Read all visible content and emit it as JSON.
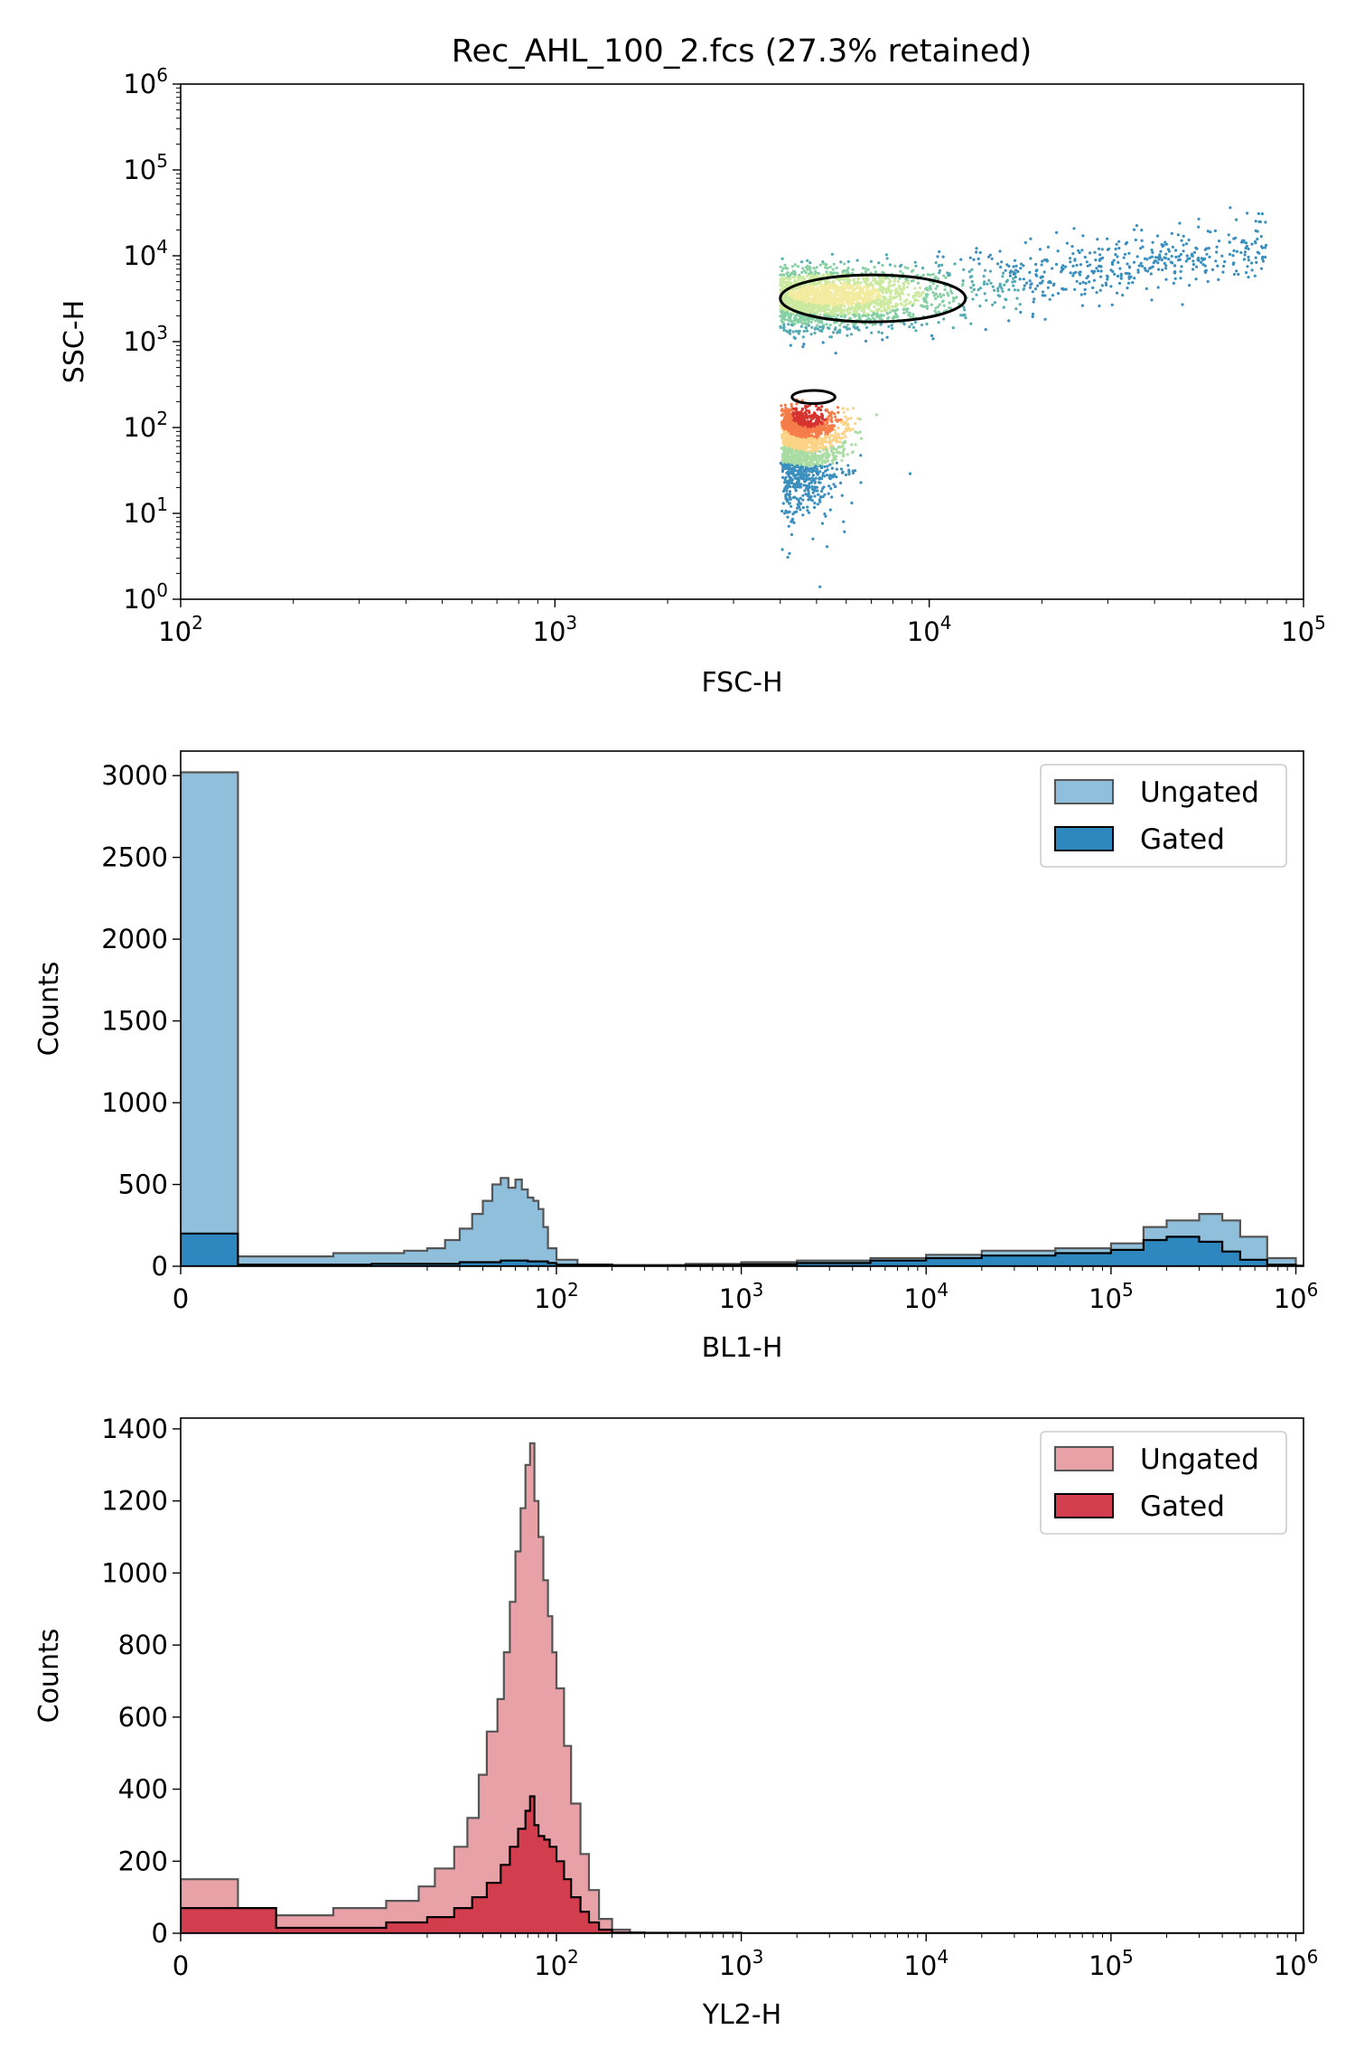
{
  "figure": {
    "title": "Rec_AHL_100_2.fcs (27.3% retained)"
  },
  "chart_data": [
    {
      "type": "scatter",
      "name": "density-scatter",
      "title": "Rec_AHL_100_2.fcs (27.3% retained)",
      "xlabel": "FSC-H",
      "ylabel": "SSC-H",
      "xscale": "log",
      "yscale": "log",
      "xlim": [
        100,
        100000
      ],
      "ylim": [
        1,
        1000000
      ],
      "xticks": [
        {
          "base": "10",
          "exp": "2"
        },
        {
          "base": "10",
          "exp": "3"
        },
        {
          "base": "10",
          "exp": "4"
        },
        {
          "base": "10",
          "exp": "5"
        }
      ],
      "yticks": [
        {
          "base": "10",
          "exp": "0"
        },
        {
          "base": "10",
          "exp": "1"
        },
        {
          "base": "10",
          "exp": "2"
        },
        {
          "base": "10",
          "exp": "3"
        },
        {
          "base": "10",
          "exp": "4"
        },
        {
          "base": "10",
          "exp": "5"
        },
        {
          "base": "10",
          "exp": "6"
        }
      ],
      "colormap": "Spectral_r density",
      "clusters": [
        {
          "label": "upper population",
          "fsc_range": [
            4000,
            90000
          ],
          "ssc_center": 3500,
          "ssc_range": [
            600,
            50000
          ]
        },
        {
          "label": "lower population",
          "fsc_range": [
            4000,
            10000
          ],
          "ssc_center": 150,
          "ssc_range": [
            1,
            350
          ]
        }
      ],
      "gate_contours": [
        {
          "label": "gate contour 1",
          "fsc_range": [
            4000,
            12500
          ],
          "ssc_range": [
            1700,
            6000
          ]
        },
        {
          "label": "gate contour 2",
          "fsc_range": [
            4300,
            5600
          ],
          "ssc_range": [
            190,
            270
          ]
        }
      ]
    },
    {
      "type": "histogram",
      "name": "bl1-histogram",
      "xlabel": "BL1-H",
      "ylabel": "Counts",
      "xscale": "symlog",
      "xlim": [
        0,
        1100000
      ],
      "ylim": [
        0,
        3150
      ],
      "xticks": [
        {
          "base": "0",
          "exp": ""
        },
        {
          "base": "10",
          "exp": "2"
        },
        {
          "base": "10",
          "exp": "3"
        },
        {
          "base": "10",
          "exp": "4"
        },
        {
          "base": "10",
          "exp": "5"
        },
        {
          "base": "10",
          "exp": "6"
        }
      ],
      "yticks": [
        0,
        500,
        1000,
        1500,
        2000,
        2500,
        3000
      ],
      "legend": {
        "position": "top-right",
        "entries": [
          "Ungated",
          "Gated"
        ]
      },
      "colors": {
        "ungated": "#8fbfdb",
        "gated": "#2f87c0",
        "ungated_edge": "#555555",
        "gated_edge": "#000000"
      },
      "series": [
        {
          "name": "Ungated",
          "points": [
            [
              0,
              3020
            ],
            [
              3,
              60
            ],
            [
              8,
              80
            ],
            [
              15,
              95
            ],
            [
              20,
              110
            ],
            [
              25,
              160
            ],
            [
              30,
              230
            ],
            [
              35,
              320
            ],
            [
              40,
              400
            ],
            [
              45,
              500
            ],
            [
              50,
              540
            ],
            [
              55,
              480
            ],
            [
              60,
              530
            ],
            [
              65,
              470
            ],
            [
              70,
              420
            ],
            [
              75,
              400
            ],
            [
              80,
              350
            ],
            [
              85,
              240
            ],
            [
              90,
              110
            ],
            [
              100,
              40
            ],
            [
              130,
              10
            ],
            [
              200,
              8
            ],
            [
              500,
              15
            ],
            [
              1000,
              25
            ],
            [
              2000,
              35
            ],
            [
              5000,
              50
            ],
            [
              10000,
              70
            ],
            [
              20000,
              95
            ],
            [
              50000,
              110
            ],
            [
              100000,
              140
            ],
            [
              150000,
              240
            ],
            [
              200000,
              280
            ],
            [
              300000,
              320
            ],
            [
              400000,
              280
            ],
            [
              500000,
              180
            ],
            [
              700000,
              50
            ],
            [
              1000000,
              5
            ]
          ]
        },
        {
          "name": "Gated",
          "points": [
            [
              0,
              200
            ],
            [
              3,
              10
            ],
            [
              10,
              15
            ],
            [
              30,
              25
            ],
            [
              50,
              35
            ],
            [
              70,
              30
            ],
            [
              90,
              20
            ],
            [
              100,
              10
            ],
            [
              200,
              4
            ],
            [
              500,
              6
            ],
            [
              1000,
              12
            ],
            [
              2000,
              20
            ],
            [
              5000,
              35
            ],
            [
              10000,
              50
            ],
            [
              20000,
              65
            ],
            [
              50000,
              80
            ],
            [
              100000,
              100
            ],
            [
              150000,
              160
            ],
            [
              200000,
              180
            ],
            [
              300000,
              150
            ],
            [
              400000,
              90
            ],
            [
              500000,
              40
            ],
            [
              700000,
              10
            ],
            [
              1000000,
              0
            ]
          ]
        }
      ]
    },
    {
      "type": "histogram",
      "name": "yl2-histogram",
      "xlabel": "YL2-H",
      "ylabel": "Counts",
      "xscale": "symlog",
      "xlim": [
        0,
        1100000
      ],
      "ylim": [
        0,
        1430
      ],
      "xticks": [
        {
          "base": "0",
          "exp": ""
        },
        {
          "base": "10",
          "exp": "2"
        },
        {
          "base": "10",
          "exp": "3"
        },
        {
          "base": "10",
          "exp": "4"
        },
        {
          "base": "10",
          "exp": "5"
        },
        {
          "base": "10",
          "exp": "6"
        }
      ],
      "yticks": [
        0,
        200,
        400,
        600,
        800,
        1000,
        1200,
        1400
      ],
      "legend": {
        "position": "top-right",
        "entries": [
          "Ungated",
          "Gated"
        ]
      },
      "colors": {
        "ungated": "#e8a1a6",
        "gated": "#d33e4e",
        "ungated_edge": "#555555",
        "gated_edge": "#000000"
      },
      "series": [
        {
          "name": "Ungated",
          "points": [
            [
              0,
              150
            ],
            [
              3,
              50
            ],
            [
              8,
              70
            ],
            [
              12,
              90
            ],
            [
              18,
              130
            ],
            [
              22,
              180
            ],
            [
              28,
              240
            ],
            [
              33,
              320
            ],
            [
              38,
              440
            ],
            [
              42,
              560
            ],
            [
              48,
              650
            ],
            [
              52,
              780
            ],
            [
              56,
              920
            ],
            [
              60,
              1060
            ],
            [
              64,
              1180
            ],
            [
              68,
              1300
            ],
            [
              72,
              1360
            ],
            [
              76,
              1200
            ],
            [
              80,
              1100
            ],
            [
              85,
              980
            ],
            [
              90,
              880
            ],
            [
              95,
              780
            ],
            [
              100,
              680
            ],
            [
              110,
              520
            ],
            [
              120,
              360
            ],
            [
              135,
              220
            ],
            [
              150,
              120
            ],
            [
              170,
              40
            ],
            [
              200,
              10
            ],
            [
              250,
              2
            ],
            [
              1000,
              0
            ],
            [
              1000000,
              0
            ]
          ]
        },
        {
          "name": "Gated",
          "points": [
            [
              0,
              70
            ],
            [
              5,
              15
            ],
            [
              12,
              30
            ],
            [
              20,
              45
            ],
            [
              28,
              70
            ],
            [
              35,
              100
            ],
            [
              42,
              140
            ],
            [
              50,
              190
            ],
            [
              56,
              240
            ],
            [
              62,
              290
            ],
            [
              68,
              340
            ],
            [
              72,
              380
            ],
            [
              76,
              300
            ],
            [
              80,
              270
            ],
            [
              86,
              260
            ],
            [
              92,
              240
            ],
            [
              100,
              200
            ],
            [
              110,
              150
            ],
            [
              120,
              100
            ],
            [
              135,
              60
            ],
            [
              150,
              30
            ],
            [
              170,
              10
            ],
            [
              200,
              2
            ],
            [
              300,
              0
            ],
            [
              1000000,
              0
            ]
          ]
        }
      ]
    }
  ]
}
